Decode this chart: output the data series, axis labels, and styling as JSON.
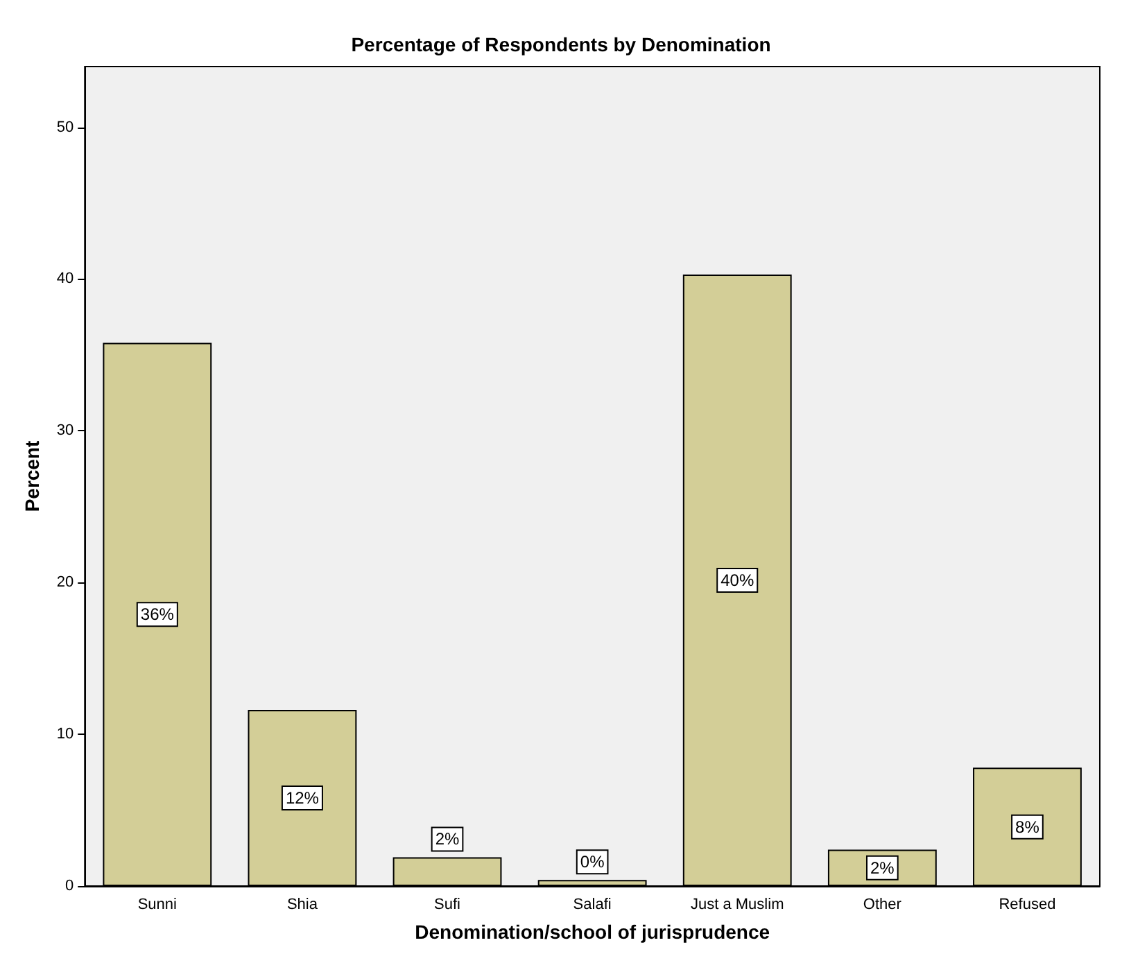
{
  "chart_data": {
    "type": "bar",
    "title": "Percentage of Respondents by Denomination",
    "xlabel": "Denomination/school of jurisprudence",
    "ylabel": "Percent",
    "categories": [
      "Sunni",
      "Shia",
      "Sufi",
      "Salafi",
      "Just a Muslim",
      "Other",
      "Refused"
    ],
    "values": [
      35.8,
      11.6,
      1.9,
      0.4,
      40.3,
      2.4,
      7.8
    ],
    "value_labels": [
      "36%",
      "12%",
      "2%",
      "0%",
      "40%",
      "2%",
      "8%"
    ],
    "color": "#d3ce97",
    "ylim": [
      0,
      54
    ],
    "yticks": [
      0,
      10,
      20,
      30,
      40,
      50
    ],
    "grid": false
  }
}
